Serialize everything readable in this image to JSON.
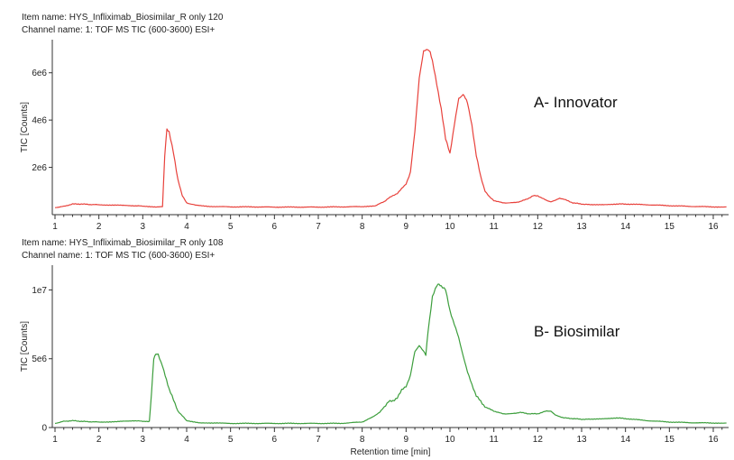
{
  "chart_data": [
    {
      "type": "line",
      "item_name": "Item name: HYS_Infliximab_Biosimilar_R only 120",
      "channel_name": "Channel name: 1: TOF MS TIC (600-3600) ESI+",
      "annotation": "A- Innovator",
      "ylabel": "TIC [Counts]",
      "xlabel": "",
      "xlim": [
        1,
        16.3
      ],
      "ylim": [
        0,
        7400000
      ],
      "yticks": [
        {
          "v": 2000000,
          "label": "2e6"
        },
        {
          "v": 4000000,
          "label": "4e6"
        },
        {
          "v": 6000000,
          "label": "6e6"
        }
      ],
      "xticks": [
        "1",
        "2",
        "3",
        "4",
        "5",
        "6",
        "7",
        "8",
        "9",
        "10",
        "11",
        "12",
        "13",
        "14",
        "15",
        "16"
      ],
      "series": [
        {
          "color": "#e8413b",
          "x": [
            1.0,
            1.2,
            1.4,
            1.6,
            1.8,
            2.0,
            2.4,
            2.8,
            3.0,
            3.3,
            3.45,
            3.5,
            3.55,
            3.6,
            3.7,
            3.8,
            3.9,
            4.0,
            4.2,
            4.5,
            5.0,
            5.5,
            6.0,
            6.5,
            7.0,
            7.5,
            8.0,
            8.3,
            8.5,
            8.6,
            8.7,
            8.8,
            8.9,
            9.0,
            9.1,
            9.2,
            9.3,
            9.4,
            9.5,
            9.55,
            9.6,
            9.7,
            9.8,
            9.9,
            10.0,
            10.1,
            10.2,
            10.3,
            10.35,
            10.4,
            10.5,
            10.6,
            10.7,
            10.8,
            10.9,
            11.0,
            11.2,
            11.4,
            11.6,
            11.8,
            11.9,
            12.0,
            12.1,
            12.2,
            12.3,
            12.4,
            12.5,
            12.6,
            12.8,
            13.0,
            13.2,
            13.5,
            13.8,
            14.0,
            14.5,
            15.0,
            15.5,
            16.0,
            16.3
          ],
          "y": [
            300000,
            350000,
            450000,
            450000,
            430000,
            420000,
            400000,
            380000,
            360000,
            330000,
            350000,
            2500000,
            3600000,
            3500000,
            2600000,
            1500000,
            800000,
            500000,
            400000,
            350000,
            330000,
            330000,
            320000,
            320000,
            320000,
            330000,
            340000,
            380000,
            550000,
            700000,
            800000,
            900000,
            1100000,
            1300000,
            1800000,
            3500000,
            5800000,
            6900000,
            7000000,
            6850000,
            6500000,
            5500000,
            4500000,
            3200000,
            2600000,
            3800000,
            4900000,
            5100000,
            4950000,
            4700000,
            3800000,
            2500000,
            1600000,
            1000000,
            750000,
            600000,
            500000,
            500000,
            550000,
            700000,
            800000,
            800000,
            700000,
            600000,
            550000,
            600000,
            700000,
            650000,
            500000,
            450000,
            420000,
            430000,
            450000,
            450000,
            420000,
            380000,
            350000,
            330000,
            330000
          ]
        }
      ]
    },
    {
      "type": "line",
      "item_name": "Item name: HYS_Infliximab_Biosimilar_R only 108",
      "channel_name": "Channel name: 1: TOF MS TIC (600-3600) ESI+",
      "annotation": "B- Biosimilar",
      "ylabel": "TIC [Counts]",
      "xlabel": "Retention time [min]",
      "xlim": [
        1,
        16.3
      ],
      "ylim": [
        0,
        11800000
      ],
      "yticks": [
        {
          "v": 0,
          "label": "0"
        },
        {
          "v": 5000000,
          "label": "5e6"
        },
        {
          "v": 10000000,
          "label": "1e7"
        }
      ],
      "xticks": [
        "1",
        "2",
        "3",
        "4",
        "5",
        "6",
        "7",
        "8",
        "9",
        "10",
        "11",
        "12",
        "13",
        "14",
        "15",
        "16"
      ],
      "series": [
        {
          "color": "#3c9e3c",
          "x": [
            1.0,
            1.2,
            1.4,
            1.6,
            1.8,
            2.0,
            2.4,
            2.8,
            3.0,
            3.15,
            3.2,
            3.25,
            3.3,
            3.35,
            3.45,
            3.6,
            3.8,
            4.0,
            4.3,
            4.6,
            5.0,
            5.5,
            6.0,
            6.5,
            7.0,
            7.5,
            8.0,
            8.2,
            8.4,
            8.5,
            8.6,
            8.7,
            8.8,
            8.9,
            9.0,
            9.1,
            9.2,
            9.3,
            9.4,
            9.45,
            9.5,
            9.6,
            9.7,
            9.75,
            9.8,
            9.9,
            10.0,
            10.2,
            10.4,
            10.6,
            10.8,
            11.0,
            11.2,
            11.4,
            11.6,
            11.8,
            12.0,
            12.2,
            12.3,
            12.4,
            12.6,
            12.8,
            13.0,
            13.2,
            13.5,
            13.8,
            14.0,
            14.5,
            15.0,
            15.5,
            16.0,
            16.3
          ],
          "y": [
            300000,
            450000,
            500000,
            450000,
            420000,
            400000,
            420000,
            500000,
            450000,
            450000,
            2500000,
            5000000,
            5400000,
            5300000,
            4500000,
            2800000,
            1200000,
            500000,
            350000,
            330000,
            300000,
            300000,
            300000,
            300000,
            300000,
            300000,
            400000,
            700000,
            1100000,
            1500000,
            1900000,
            1900000,
            2200000,
            2700000,
            3000000,
            3800000,
            5500000,
            6000000,
            5500000,
            5300000,
            7000000,
            9500000,
            10300000,
            10400000,
            10300000,
            10000000,
            8500000,
            6500000,
            4000000,
            2300000,
            1500000,
            1200000,
            1000000,
            1000000,
            1100000,
            1000000,
            1000000,
            1200000,
            1200000,
            900000,
            700000,
            650000,
            600000,
            600000,
            650000,
            700000,
            650000,
            500000,
            400000,
            350000,
            330000,
            330000
          ]
        }
      ]
    }
  ]
}
